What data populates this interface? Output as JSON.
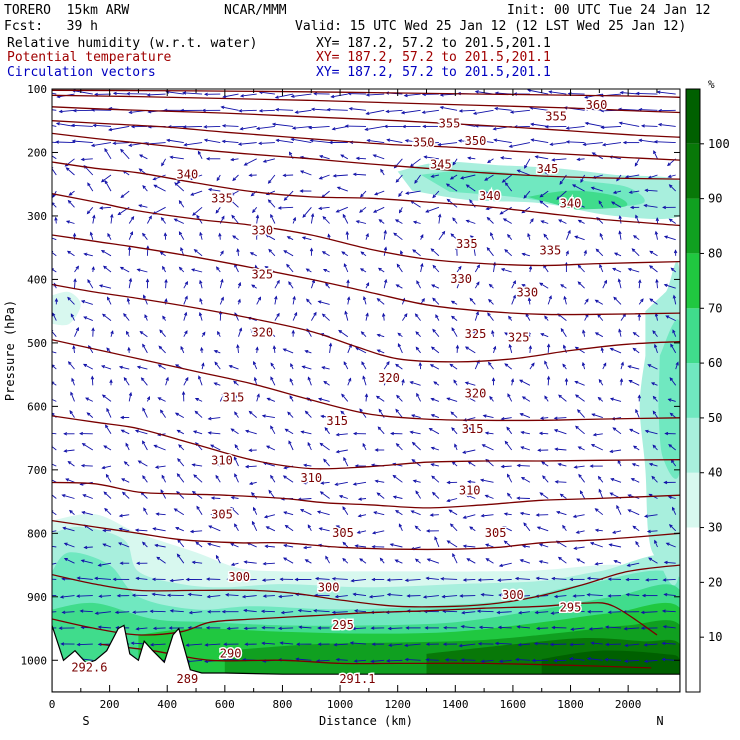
{
  "header": {
    "model": "TORERO  15km ARW",
    "org": "NCAR/MMM",
    "init": "Init: 00 UTC Tue 24 Jan 12",
    "fcst": "Fcst:   39 h",
    "valid": "Valid: 15 UTC Wed 25 Jan 12 (12 LST Wed 25 Jan 12)",
    "field1": "Relative humidity (w.r.t. water)",
    "field2": "Potential temperature",
    "field3": "Circulation vectors",
    "xy1": "XY= 187.2, 57.2 to 201.5,201.1",
    "xy2": "XY= 187.2, 57.2 to 201.5,201.1",
    "xy3": "XY= 187.2, 57.2 to 201.5,201.1"
  },
  "chart_data": {
    "type": "cross-section",
    "xlabel": "Distance (km)",
    "ylabel": "Pressure (hPa)",
    "x_ticks": [
      0,
      200,
      400,
      600,
      800,
      1000,
      1200,
      1400,
      1600,
      1800,
      2000
    ],
    "y_ticks": [
      100,
      200,
      300,
      400,
      500,
      600,
      700,
      800,
      900,
      1000
    ],
    "xlim": [
      0,
      2180
    ],
    "ylim": [
      100,
      1050
    ],
    "end_labels": {
      "left": "S",
      "right": "N"
    },
    "colorbar": {
      "unit": "%",
      "ticks": [
        10,
        20,
        30,
        40,
        50,
        60,
        70,
        80,
        90,
        100
      ],
      "colors": [
        "#ffffff",
        "#ffffff",
        "#ffffff",
        "#d8f8ef",
        "#a8efdd",
        "#70e8c0",
        "#40dc8c",
        "#20c840",
        "#10a020",
        "#087808",
        "#006000"
      ]
    },
    "theta_isentropes": [
      {
        "value": 290,
        "points": [
          [
            170,
            975
          ],
          [
            350,
            985
          ],
          [
            550,
            1000
          ],
          [
            800,
            1000
          ],
          [
            1000,
            1005
          ],
          [
            1200,
            1005
          ],
          [
            1500,
            1005
          ],
          [
            1800,
            1008
          ],
          [
            2080,
            1012
          ]
        ]
      },
      {
        "value": 295,
        "points": [
          [
            0,
            935
          ],
          [
            150,
            950
          ],
          [
            300,
            960
          ],
          [
            450,
            955
          ],
          [
            550,
            940
          ],
          [
            700,
            935
          ],
          [
            900,
            930
          ],
          [
            1100,
            925
          ],
          [
            1300,
            922
          ],
          [
            1500,
            918
          ],
          [
            1700,
            915
          ],
          [
            1850,
            910
          ],
          [
            1950,
            915
          ],
          [
            2100,
            960
          ]
        ]
      },
      {
        "value": 300,
        "points": [
          [
            0,
            865
          ],
          [
            150,
            880
          ],
          [
            300,
            890
          ],
          [
            500,
            890
          ],
          [
            700,
            890
          ],
          [
            850,
            895
          ],
          [
            1000,
            905
          ],
          [
            1200,
            915
          ],
          [
            1400,
            915
          ],
          [
            1550,
            910
          ],
          [
            1700,
            898
          ],
          [
            1850,
            880
          ],
          [
            2000,
            860
          ],
          [
            2180,
            850
          ]
        ]
      },
      {
        "value": 305,
        "points": [
          [
            0,
            780
          ],
          [
            150,
            790
          ],
          [
            300,
            800
          ],
          [
            450,
            810
          ],
          [
            650,
            815
          ],
          [
            800,
            815
          ],
          [
            1000,
            822
          ],
          [
            1200,
            825
          ],
          [
            1400,
            825
          ],
          [
            1550,
            822
          ],
          [
            1700,
            815
          ],
          [
            1900,
            810
          ],
          [
            2050,
            805
          ],
          [
            2180,
            800
          ]
        ]
      },
      {
        "value": 310,
        "points": [
          [
            0,
            720
          ],
          [
            150,
            722
          ],
          [
            300,
            735
          ],
          [
            450,
            738
          ],
          [
            600,
            740
          ],
          [
            800,
            745
          ],
          [
            950,
            752
          ],
          [
            1100,
            755
          ],
          [
            1300,
            760
          ],
          [
            1500,
            755
          ],
          [
            1700,
            748
          ],
          [
            1900,
            745
          ],
          [
            2180,
            740
          ]
        ]
      },
      {
        "value": 315,
        "points": [
          [
            0,
            615
          ],
          [
            150,
            625
          ],
          [
            300,
            635
          ],
          [
            500,
            660
          ],
          [
            700,
            685
          ],
          [
            900,
            698
          ],
          [
            1100,
            695
          ],
          [
            1300,
            688
          ],
          [
            1500,
            686
          ],
          [
            1700,
            686
          ],
          [
            1900,
            685
          ],
          [
            2180,
            684
          ]
        ]
      },
      {
        "value": 320,
        "points": [
          [
            0,
            495
          ],
          [
            150,
            510
          ],
          [
            300,
            525
          ],
          [
            500,
            545
          ],
          [
            700,
            565
          ],
          [
            900,
            590
          ],
          [
            1100,
            612
          ],
          [
            1300,
            620
          ],
          [
            1500,
            622
          ],
          [
            1700,
            622
          ],
          [
            1900,
            620
          ],
          [
            2180,
            618
          ]
        ]
      },
      {
        "value": 325,
        "points": [
          [
            0,
            408
          ],
          [
            150,
            420
          ],
          [
            300,
            430
          ],
          [
            500,
            445
          ],
          [
            700,
            462
          ],
          [
            900,
            482
          ],
          [
            1050,
            505
          ],
          [
            1200,
            525
          ],
          [
            1400,
            530
          ],
          [
            1600,
            525
          ],
          [
            1800,
            512
          ],
          [
            2000,
            502
          ],
          [
            2180,
            498
          ]
        ]
      },
      {
        "value": 330,
        "points": [
          [
            0,
            330
          ],
          [
            150,
            340
          ],
          [
            300,
            350
          ],
          [
            500,
            365
          ],
          [
            700,
            382
          ],
          [
            900,
            400
          ],
          [
            1100,
            420
          ],
          [
            1300,
            440
          ],
          [
            1500,
            450
          ],
          [
            1700,
            455
          ],
          [
            1900,
            455
          ],
          [
            2180,
            453
          ]
        ]
      },
      {
        "value": 335,
        "points": [
          [
            0,
            265
          ],
          [
            150,
            278
          ],
          [
            300,
            292
          ],
          [
            500,
            305
          ],
          [
            700,
            315
          ],
          [
            900,
            330
          ],
          [
            1100,
            352
          ],
          [
            1300,
            368
          ],
          [
            1500,
            375
          ],
          [
            1700,
            378
          ],
          [
            1900,
            375
          ],
          [
            2180,
            372
          ]
        ]
      },
      {
        "value": 340,
        "points": [
          [
            0,
            215
          ],
          [
            150,
            225
          ],
          [
            300,
            232
          ],
          [
            500,
            248
          ],
          [
            700,
            262
          ],
          [
            900,
            270
          ],
          [
            1100,
            272
          ],
          [
            1300,
            278
          ],
          [
            1500,
            285
          ],
          [
            1700,
            295
          ],
          [
            1900,
            305
          ],
          [
            2180,
            315
          ]
        ]
      },
      {
        "value": 345,
        "points": [
          [
            0,
            170
          ],
          [
            150,
            178
          ],
          [
            300,
            185
          ],
          [
            500,
            195
          ],
          [
            700,
            203
          ],
          [
            900,
            210
          ],
          [
            1100,
            218
          ],
          [
            1300,
            225
          ],
          [
            1500,
            232
          ],
          [
            1700,
            237
          ],
          [
            1900,
            240
          ],
          [
            2180,
            242
          ]
        ]
      },
      {
        "value": 350,
        "points": [
          [
            0,
            150
          ],
          [
            200,
            155
          ],
          [
            400,
            160
          ],
          [
            600,
            168
          ],
          [
            800,
            175
          ],
          [
            1000,
            182
          ],
          [
            1200,
            188
          ],
          [
            1400,
            192
          ],
          [
            1600,
            198
          ],
          [
            1800,
            203
          ],
          [
            2000,
            208
          ],
          [
            2180,
            212
          ]
        ]
      },
      {
        "value": 355,
        "points": [
          [
            0,
            128
          ],
          [
            200,
            132
          ],
          [
            400,
            135
          ],
          [
            600,
            138
          ],
          [
            800,
            142
          ],
          [
            1000,
            146
          ],
          [
            1200,
            150
          ],
          [
            1400,
            155
          ],
          [
            1600,
            160
          ],
          [
            1800,
            166
          ],
          [
            2000,
            172
          ],
          [
            2180,
            176
          ]
        ]
      },
      {
        "value": 360,
        "points": [
          [
            0,
            110
          ],
          [
            300,
            112
          ],
          [
            600,
            115
          ],
          [
            900,
            118
          ],
          [
            1200,
            122
          ],
          [
            1500,
            126
          ],
          [
            1800,
            130
          ],
          [
            2000,
            134
          ],
          [
            2180,
            137
          ]
        ]
      },
      {
        "value": 365,
        "points": [
          [
            0,
            102
          ],
          [
            500,
            103
          ],
          [
            1000,
            105
          ],
          [
            1500,
            108
          ],
          [
            2000,
            111
          ],
          [
            2180,
            113
          ]
        ]
      }
    ],
    "contour_labels": [
      {
        "text": "360",
        "x": 1890,
        "y": 140
      },
      {
        "text": "355",
        "x": 1380,
        "y": 172
      },
      {
        "text": "355",
        "x": 1750,
        "y": 160
      },
      {
        "text": "350",
        "x": 1290,
        "y": 206
      },
      {
        "text": "350",
        "x": 1470,
        "y": 203
      },
      {
        "text": "345",
        "x": 1350,
        "y": 244
      },
      {
        "text": "345",
        "x": 1720,
        "y": 252
      },
      {
        "text": "340",
        "x": 470,
        "y": 262
      },
      {
        "text": "340",
        "x": 1520,
        "y": 299
      },
      {
        "text": "340",
        "x": 1800,
        "y": 312
      },
      {
        "text": "335",
        "x": 590,
        "y": 304
      },
      {
        "text": "335",
        "x": 1440,
        "y": 383
      },
      {
        "text": "335",
        "x": 1730,
        "y": 395
      },
      {
        "text": "330",
        "x": 730,
        "y": 360
      },
      {
        "text": "330",
        "x": 1420,
        "y": 445
      },
      {
        "text": "330",
        "x": 1650,
        "y": 468
      },
      {
        "text": "325",
        "x": 730,
        "y": 437
      },
      {
        "text": "325",
        "x": 1470,
        "y": 541
      },
      {
        "text": "325",
        "x": 1620,
        "y": 547
      },
      {
        "text": "320",
        "x": 730,
        "y": 538
      },
      {
        "text": "320",
        "x": 1170,
        "y": 618
      },
      {
        "text": "320",
        "x": 1470,
        "y": 645
      },
      {
        "text": "315",
        "x": 630,
        "y": 652
      },
      {
        "text": "315",
        "x": 990,
        "y": 693
      },
      {
        "text": "315",
        "x": 1460,
        "y": 707
      },
      {
        "text": "310",
        "x": 590,
        "y": 762
      },
      {
        "text": "310",
        "x": 900,
        "y": 793
      },
      {
        "text": "310",
        "x": 1450,
        "y": 815
      },
      {
        "text": "305",
        "x": 590,
        "y": 857
      },
      {
        "text": "305",
        "x": 1010,
        "y": 889
      },
      {
        "text": "305",
        "x": 1540,
        "y": 889
      },
      {
        "text": "300",
        "x": 650,
        "y": 966
      },
      {
        "text": "300",
        "x": 960,
        "y": 985
      },
      {
        "text": "300",
        "x": 1600,
        "y": 998
      },
      {
        "text": "295",
        "x": 1800,
        "y": 1020
      },
      {
        "text": "295",
        "x": 1010,
        "y": 1050
      },
      {
        "text": "290",
        "x": 620,
        "y": 1100
      },
      {
        "text": "292.6",
        "x": 130,
        "y": 1125
      },
      {
        "text": "289",
        "x": 470,
        "y": 1145
      },
      {
        "text": "291.1",
        "x": 1060,
        "y": 1145
      }
    ]
  }
}
